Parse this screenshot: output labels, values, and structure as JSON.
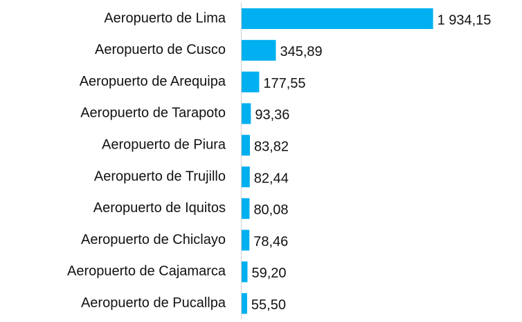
{
  "chart_data": {
    "type": "bar",
    "orientation": "horizontal",
    "categories": [
      "Aeropuerto de Lima",
      "Aeropuerto de Cusco",
      "Aeropuerto de Arequipa",
      "Aeropuerto de Tarapoto",
      "Aeropuerto de Piura",
      "Aeropuerto de Trujillo",
      "Aeropuerto de Iquitos",
      "Aeropuerto de Chiclayo",
      "Aeropuerto de Cajamarca",
      "Aeropuerto de Pucallpa"
    ],
    "values": [
      1934.15,
      345.89,
      177.55,
      93.36,
      83.82,
      82.44,
      80.08,
      78.46,
      59.2,
      55.5
    ],
    "value_labels": [
      "1 934,15",
      "345,89",
      "177,55",
      "93,36",
      "83,82",
      "82,44",
      "80,08",
      "78,46",
      "59,20",
      "55,50"
    ],
    "color": "#00b0f0",
    "xlim": [
      0,
      2000
    ]
  }
}
